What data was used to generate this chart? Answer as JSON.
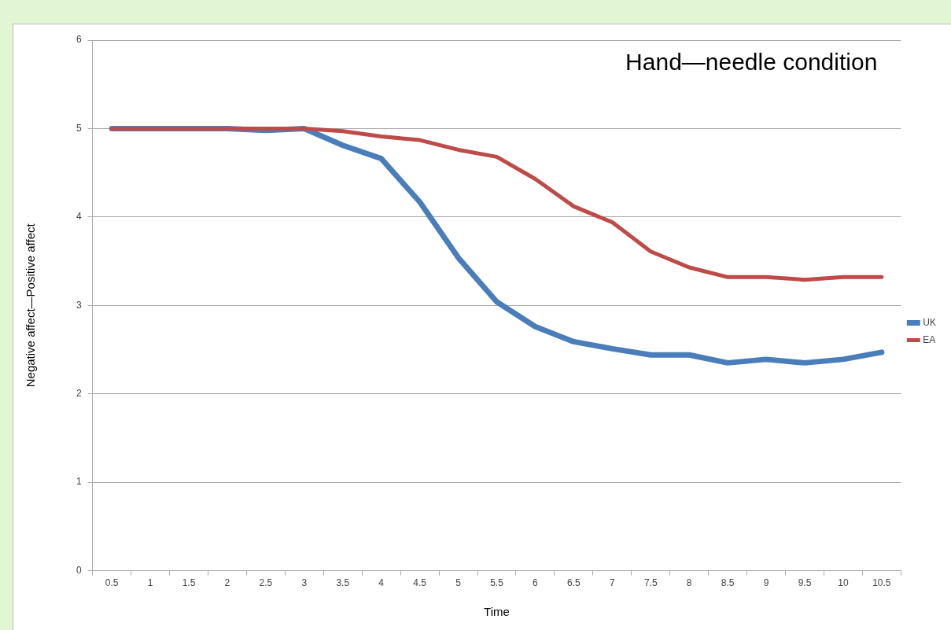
{
  "chart_data": {
    "type": "line",
    "title": "Hand—needle condition",
    "xlabel": "Time",
    "ylabel": "Negative affect—Positive affect",
    "categories": [
      "0.5",
      "1",
      "1.5",
      "2",
      "2.5",
      "3",
      "3.5",
      "4",
      "4.5",
      "5",
      "5.5",
      "6",
      "6.5",
      "7",
      "7.5",
      "8",
      "8.5",
      "9",
      "9.5",
      "10",
      "10.5"
    ],
    "series": [
      {
        "name": "UK",
        "color": "#4a7ebb",
        "values": [
          5,
          5,
          5,
          5,
          4.98,
          5,
          4.81,
          4.66,
          4.17,
          3.54,
          3.04,
          2.76,
          2.59,
          2.51,
          2.44,
          2.44,
          2.35,
          2.39,
          2.35,
          2.39,
          2.47
        ]
      },
      {
        "name": "EA",
        "color": "#be4b48",
        "values": [
          5,
          5,
          5,
          5,
          5,
          5,
          4.97,
          4.91,
          4.87,
          4.76,
          4.68,
          4.43,
          4.12,
          3.94,
          3.61,
          3.43,
          3.32,
          3.32,
          3.29,
          3.32,
          3.32
        ]
      }
    ],
    "ylim": [
      0,
      6
    ],
    "yticks": [
      0,
      1,
      2,
      3,
      4,
      5,
      6
    ],
    "grid": "y",
    "legend": "right",
    "marker": "none",
    "line_style": "solid"
  }
}
